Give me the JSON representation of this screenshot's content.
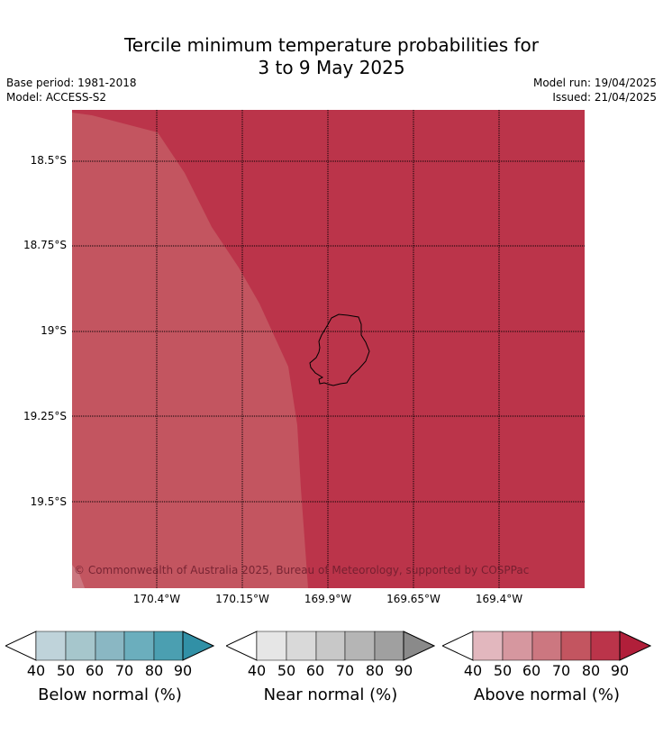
{
  "title_line1": "Tercile minimum temperature probabilities for",
  "title_line2": "3 to 9 May 2025",
  "left_meta": {
    "base_period": "Base period: 1981-2018",
    "model": "Model: ACCESS-S2"
  },
  "right_meta": {
    "model_run": "Model run: 19/04/2025",
    "issued": "Issued: 21/04/2025"
  },
  "lat_labels": [
    "18.5°S",
    "18.75°S",
    "19°S",
    "19.25°S",
    "19.5°S"
  ],
  "lon_labels": [
    "170.4°W",
    "170.15°W",
    "169.9°W",
    "169.65°W",
    "169.4°W"
  ],
  "copyright": "© Commonwealth of Australia 2025, Bureau of Meteorology, supported by COSPPac",
  "colorbars": [
    {
      "label": "Below normal (%)",
      "ticks": [
        "40",
        "50",
        "60",
        "70",
        "80",
        "90"
      ],
      "colors": [
        "#bfd3da",
        "#a6c6cc",
        "#8ab7c3",
        "#6baebd",
        "#4b9fb1"
      ],
      "extend_color": "#3190a6"
    },
    {
      "label": "Near normal (%)",
      "ticks": [
        "40",
        "50",
        "60",
        "70",
        "80",
        "90"
      ],
      "colors": [
        "#e6e6e6",
        "#d9d9d9",
        "#c8c8c8",
        "#b5b5b5",
        "#a0a0a0"
      ],
      "extend_color": "#8a8a8a"
    },
    {
      "label": "Above normal (%)",
      "ticks": [
        "40",
        "50",
        "60",
        "70",
        "80",
        "90"
      ],
      "colors": [
        "#e2b7be",
        "#d6979f",
        "#cc7780",
        "#c35560",
        "#bb344a"
      ],
      "extend_color": "#b11f3a"
    }
  ],
  "map_colors": {
    "above_80": "#bb344a",
    "above_70": "#c35560"
  }
}
